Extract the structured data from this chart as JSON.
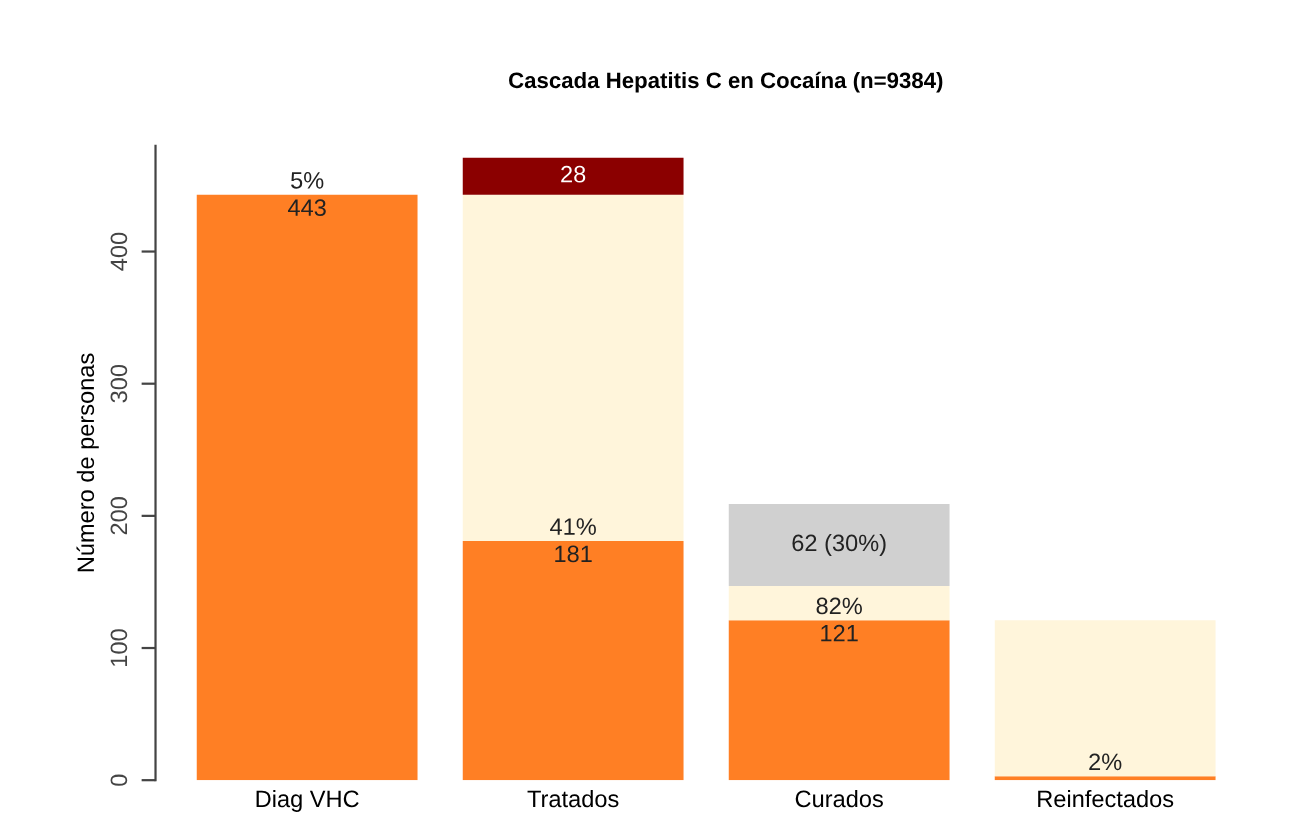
{
  "chart_data": {
    "type": "bar",
    "title": "Cascada Hepatitis C en Cocaína (n=9384)",
    "ylabel": "Número de personas",
    "categories": [
      "Diag VHC",
      "Tratados",
      "Curados",
      "Reinfectados"
    ],
    "stacked": true,
    "ylim": [
      0,
      480
    ],
    "yticks": [
      0,
      100,
      200,
      300,
      400
    ],
    "grid": false,
    "legend": false,
    "series": [
      {
        "color": "#ff7f24",
        "values": [
          443,
          181,
          121,
          3
        ],
        "value_labels": [
          "443",
          "181",
          "121",
          null
        ]
      },
      {
        "color": "#fff5db",
        "values": [
          0,
          262,
          26,
          118
        ]
      },
      {
        "color": "#d0d0d0",
        "values": [
          0,
          0,
          62,
          0
        ],
        "value_labels": [
          null,
          null,
          "62 (30%)",
          null
        ]
      },
      {
        "color": "#8b0000",
        "values": [
          0,
          28,
          0,
          0
        ],
        "value_labels": [
          null,
          "28",
          null,
          null
        ]
      }
    ],
    "annotations": [
      {
        "text": "5%",
        "x": "Diag VHC",
        "y": 443
      },
      {
        "text": "41%",
        "x": "Tratados",
        "y": 181
      },
      {
        "text": "82%",
        "x": "Curados",
        "y": 121
      },
      {
        "text": "2%",
        "x": "Reinfectados",
        "y": 3
      }
    ]
  }
}
